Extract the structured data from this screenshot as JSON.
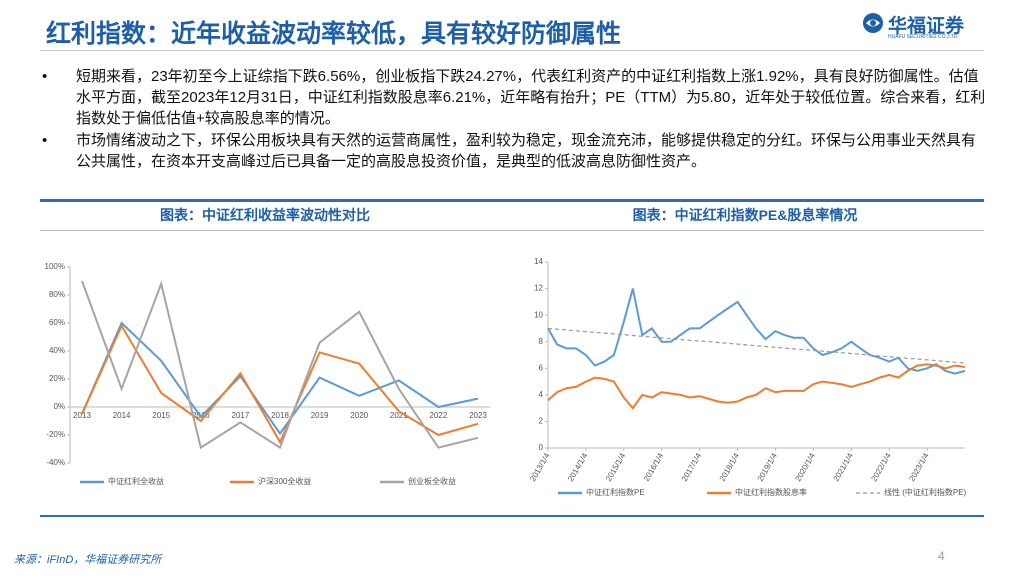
{
  "header": {
    "title": "红利指数：近年收益波动率较低，具有较好防御属性",
    "logo": "华福证券",
    "logo_sub": "HUAFU SECURITIES CO.,LTD."
  },
  "bullets": [
    "短期来看，23年初至今上证综指下跌6.56%，创业板指下跌24.27%，代表红利资产的中证红利指数上涨1.92%，具有良好防御属性。估值水平方面，截至2023年12月31日，中证红利指数股息率6.21%，近年略有抬升；PE（TTM）为5.80，近年处于较低位置。综合来看，红利指数处于偏低估值+较高股息率的情况。",
    "市场情绪波动之下，环保公用板块具有天然的运营商属性，盈利较为稳定，现金流充沛，能够提供稳定的分红。环保与公用事业天然具有公共属性，在资本开支高峰过后已具备一定的高股息投资价值，是典型的低波高息防御性资产。"
  ],
  "chart_data": [
    {
      "type": "line",
      "title": "图表：中证红利收益率波动性对比",
      "categories": [
        "2013",
        "2014",
        "2015",
        "2016",
        "2017",
        "2018",
        "2019",
        "2020",
        "2021",
        "2022",
        "2023"
      ],
      "series": [
        {
          "name": "中证红利全收益",
          "color": "#5b9bd5",
          "values": [
            -5,
            60,
            33,
            -7,
            22,
            -19,
            21,
            8,
            19,
            0,
            6
          ]
        },
        {
          "name": "沪深300全收益",
          "color": "#ed7d31",
          "values": [
            -5,
            58,
            10,
            -10,
            24,
            -25,
            39,
            31,
            -3,
            -20,
            -12
          ]
        },
        {
          "name": "创业板全收益",
          "color": "#a5a5a5",
          "values": [
            90,
            13,
            88,
            -29,
            -11,
            -29,
            46,
            68,
            13,
            -29,
            -22
          ]
        }
      ],
      "ylim": [
        -40,
        100
      ],
      "yticks": [
        {
          "value": -40,
          "label": "-40%"
        },
        {
          "value": -20,
          "label": "-20%"
        },
        {
          "value": 0,
          "label": "0%"
        },
        {
          "value": 20,
          "label": "20%"
        },
        {
          "value": 40,
          "label": "40%"
        },
        {
          "value": 60,
          "label": "60%"
        },
        {
          "value": 80,
          "label": "80%"
        },
        {
          "value": 100,
          "label": "100%"
        }
      ]
    },
    {
      "type": "line",
      "title": "图表：中证红利指数PE&股息率情况",
      "x": [
        "2013/1/4",
        "2013/4/1",
        "2013/7/1",
        "2013/10/1",
        "2014/1/4",
        "2014/4/1",
        "2014/7/1",
        "2014/10/1",
        "2015/1/4",
        "2015/4/1",
        "2015/7/1",
        "2015/10/1",
        "2016/1/4",
        "2016/4/1",
        "2016/7/1",
        "2016/10/1",
        "2017/1/4",
        "2017/4/1",
        "2017/7/1",
        "2017/10/1",
        "2018/1/4",
        "2018/4/1",
        "2018/7/1",
        "2018/10/1",
        "2019/1/4",
        "2019/4/1",
        "2019/7/1",
        "2019/10/1",
        "2020/1/4",
        "2020/4/1",
        "2020/7/1",
        "2020/10/1",
        "2021/1/4",
        "2021/4/1",
        "2021/7/1",
        "2021/10/1",
        "2022/1/4",
        "2022/4/1",
        "2022/7/1",
        "2022/10/1",
        "2023/1/4",
        "2023/4/1",
        "2023/7/1",
        "2023/10/1",
        "2024/1/4"
      ],
      "series": [
        {
          "name": "中证红利指数PE",
          "color": "#5b9bd5",
          "values": [
            9,
            7.8,
            7.5,
            7.5,
            7,
            6.2,
            6.5,
            7,
            9.5,
            12,
            8.5,
            9,
            8,
            8,
            8.5,
            9,
            9,
            9.5,
            10,
            10.5,
            11,
            10,
            9,
            8.2,
            8.8,
            8.5,
            8.3,
            8.3,
            7.5,
            7,
            7.2,
            7.5,
            8,
            7.5,
            7,
            6.8,
            6.5,
            6.8,
            6,
            5.8,
            6,
            6.3,
            5.8,
            5.6,
            5.8
          ]
        },
        {
          "name": "中证红利指数股息率",
          "color": "#ed7d31",
          "values": [
            3.6,
            4.2,
            4.5,
            4.6,
            5,
            5.3,
            5.2,
            5,
            3.8,
            3,
            4,
            3.8,
            4.2,
            4.1,
            4,
            3.8,
            3.9,
            3.7,
            3.5,
            3.4,
            3.5,
            3.8,
            4,
            4.5,
            4.2,
            4.3,
            4.3,
            4.3,
            4.8,
            5,
            4.9,
            4.8,
            4.6,
            4.8,
            5,
            5.3,
            5.5,
            5.3,
            5.8,
            6.2,
            6.3,
            6.2,
            6,
            6.2,
            6.1
          ]
        },
        {
          "name": "线性 (中证红利指数PE)",
          "color": "#999999",
          "dash": true,
          "values": [
            9,
            8.94,
            8.88,
            8.82,
            8.76,
            8.7,
            8.65,
            8.59,
            8.53,
            8.47,
            8.41,
            8.35,
            8.29,
            8.23,
            8.17,
            8.11,
            8.05,
            8,
            7.94,
            7.88,
            7.82,
            7.76,
            7.7,
            7.64,
            7.58,
            7.52,
            7.46,
            7.4,
            7.35,
            7.29,
            7.23,
            7.17,
            7.11,
            7.05,
            6.99,
            6.93,
            6.87,
            6.81,
            6.75,
            6.7,
            6.64,
            6.58,
            6.52,
            6.46,
            6.4
          ]
        }
      ],
      "xticks": [
        "2013/1/4",
        "2014/1/4",
        "2015/1/4",
        "2016/1/4",
        "2017/1/4",
        "2018/1/4",
        "2019/1/4",
        "2020/1/4",
        "2021/1/4",
        "2022/1/4",
        "2023/1/4"
      ],
      "ylim": [
        0,
        14
      ],
      "yticks": [
        0,
        2,
        4,
        6,
        8,
        10,
        12,
        14
      ]
    }
  ],
  "footer": {
    "source": "来源：iFInD，华福证券研究所",
    "page": "4"
  }
}
